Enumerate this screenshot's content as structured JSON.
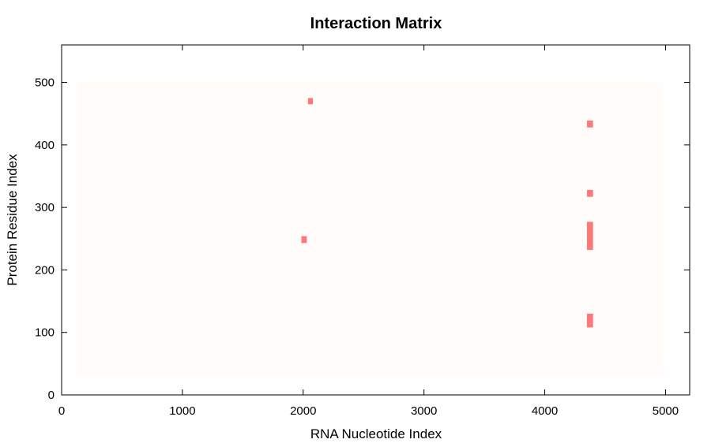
{
  "chart_data": {
    "type": "heatmap",
    "title": "Interaction Matrix",
    "xlabel": "RNA Nucleotide Index",
    "ylabel": "Protein Residue Index",
    "xlim": [
      0,
      5200
    ],
    "ylim": [
      0,
      560
    ],
    "xticks": [
      0,
      1000,
      2000,
      3000,
      4000,
      5000
    ],
    "yticks": [
      0,
      100,
      200,
      300,
      400,
      500
    ],
    "grid": false,
    "background_region": {
      "x": [
        130,
        4980
      ],
      "y": [
        30,
        500
      ]
    },
    "colors": {
      "background": "#fffcfa",
      "cell": "#ff7777"
    },
    "cells": [
      {
        "x": [
          2040,
          2080
        ],
        "y": [
          465,
          475
        ]
      },
      {
        "x": [
          4350,
          4400
        ],
        "y": [
          428,
          439
        ]
      },
      {
        "x": [
          4350,
          4400
        ],
        "y": [
          317,
          328
        ]
      },
      {
        "x": [
          1985,
          2030
        ],
        "y": [
          243,
          254
        ]
      },
      {
        "x": [
          4350,
          4400
        ],
        "y": [
          232,
          277
        ]
      },
      {
        "x": [
          4350,
          4400
        ],
        "y": [
          108,
          130
        ]
      }
    ]
  }
}
